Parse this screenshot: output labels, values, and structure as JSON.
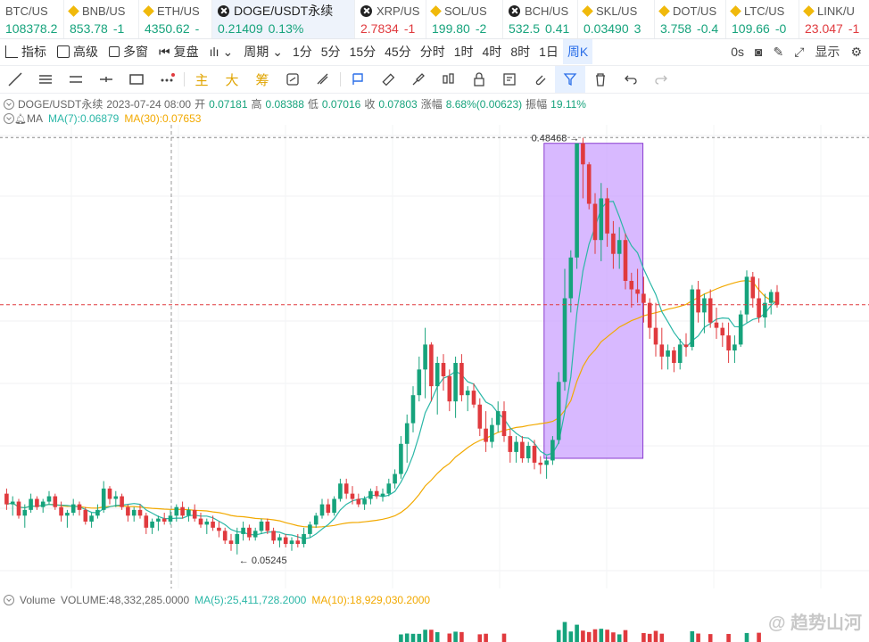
{
  "tickers": [
    {
      "symbol": "BTC/US",
      "price": "108378.2",
      "change": "",
      "dir": "up",
      "icon": "none"
    },
    {
      "symbol": "BNB/US",
      "price": "853.78",
      "change": "-1",
      "dir": "up",
      "icon": "coin-icon"
    },
    {
      "symbol": "ETH/US",
      "price": "4350.62",
      "change": "-",
      "dir": "up",
      "icon": "coin-icon"
    },
    {
      "symbol": "DOGE/USDT永续",
      "price": "0.21409",
      "change": "0.13%",
      "dir": "up",
      "icon": "x-icon",
      "active": true
    },
    {
      "symbol": "XRP/US",
      "price": "2.7834",
      "change": "-1",
      "dir": "dn",
      "icon": "x-icon"
    },
    {
      "symbol": "SOL/US",
      "price": "199.80",
      "change": "-2",
      "dir": "up",
      "icon": "coin-icon"
    },
    {
      "symbol": "BCH/US",
      "price": "532.5",
      "change": "0.41",
      "dir": "up",
      "icon": "x-icon"
    },
    {
      "symbol": "SKL/US",
      "price": "0.03490",
      "change": "3",
      "dir": "up",
      "icon": "coin-icon"
    },
    {
      "symbol": "DOT/US",
      "price": "3.758",
      "change": "-0.4",
      "dir": "up",
      "icon": "coin-icon"
    },
    {
      "symbol": "LTC/US",
      "price": "109.66",
      "change": "-0",
      "dir": "up",
      "icon": "coin-icon"
    },
    {
      "symbol": "LINK/U",
      "price": "23.047",
      "change": "-1",
      "dir": "dn",
      "icon": "coin-icon"
    }
  ],
  "toolbar1": {
    "indicators": "指标",
    "advanced": "高级",
    "multi_window": "多窗",
    "replay": "复盘",
    "period": "周期",
    "intervals": [
      "1分",
      "5分",
      "15分",
      "45分",
      "分时",
      "1时",
      "4时",
      "8时",
      "1日",
      "周K"
    ],
    "selected_interval": "周K",
    "right_zero": "0s",
    "display": "显示"
  },
  "toolbar2": {
    "zhu": "主",
    "da": "大",
    "chou": "筹"
  },
  "info": {
    "pair": "DOGE/USDT永续",
    "datetime": "2023-07-24 08:00",
    "open_label": "开",
    "open": "0.07181",
    "high_label": "高",
    "high": "0.08388",
    "low_label": "低",
    "low": "0.07016",
    "close_label": "收",
    "close": "0.07803",
    "change_label": "涨幅",
    "change": "8.68%(0.00623)",
    "amp_label": "振幅",
    "amp": "19.11%"
  },
  "ma": {
    "label": "MA",
    "ma7": "MA(7):0.06879",
    "ma30": "MA(30):0.07653"
  },
  "annotations": {
    "high_label": "0.48468",
    "low_label": "0.05245"
  },
  "volume": {
    "label": "Volume",
    "value": "VOLUME:48,332,285.0000",
    "ma5": "MA(5):25,411,728.2000",
    "ma10": "MA(10):18,929,030.2000"
  },
  "watermark": "@ 趋势山河",
  "colors": {
    "up": "#16a37c",
    "down": "#e03a3e",
    "ma7": "#2bb7a7",
    "ma30": "#f2a900",
    "box": "#c89bff"
  },
  "chart_data": {
    "type": "candlestick",
    "ohlc": [
      [
        0.072,
        0.074,
        0.066,
        0.068
      ],
      [
        0.068,
        0.071,
        0.064,
        0.069
      ],
      [
        0.069,
        0.07,
        0.063,
        0.064
      ],
      [
        0.064,
        0.068,
        0.06,
        0.066
      ],
      [
        0.066,
        0.072,
        0.065,
        0.07
      ],
      [
        0.07,
        0.071,
        0.066,
        0.067
      ],
      [
        0.067,
        0.07,
        0.065,
        0.069
      ],
      [
        0.069,
        0.073,
        0.068,
        0.071
      ],
      [
        0.071,
        0.072,
        0.066,
        0.067
      ],
      [
        0.067,
        0.069,
        0.062,
        0.064
      ],
      [
        0.064,
        0.066,
        0.06,
        0.065
      ],
      [
        0.065,
        0.07,
        0.064,
        0.068
      ],
      [
        0.068,
        0.069,
        0.064,
        0.066
      ],
      [
        0.066,
        0.067,
        0.061,
        0.062
      ],
      [
        0.062,
        0.065,
        0.06,
        0.064
      ],
      [
        0.064,
        0.068,
        0.063,
        0.066
      ],
      [
        0.066,
        0.077,
        0.065,
        0.074
      ],
      [
        0.074,
        0.075,
        0.068,
        0.07
      ],
      [
        0.07,
        0.073,
        0.067,
        0.071
      ],
      [
        0.071,
        0.072,
        0.066,
        0.067
      ],
      [
        0.067,
        0.068,
        0.062,
        0.064
      ],
      [
        0.064,
        0.067,
        0.062,
        0.066
      ],
      [
        0.066,
        0.068,
        0.063,
        0.064
      ],
      [
        0.064,
        0.065,
        0.058,
        0.06
      ],
      [
        0.06,
        0.063,
        0.058,
        0.062
      ],
      [
        0.062,
        0.064,
        0.059,
        0.063
      ],
      [
        0.063,
        0.065,
        0.061,
        0.062
      ],
      [
        0.062,
        0.066,
        0.061,
        0.064
      ],
      [
        0.064,
        0.068,
        0.062,
        0.067
      ],
      [
        0.067,
        0.069,
        0.063,
        0.064
      ],
      [
        0.064,
        0.067,
        0.062,
        0.066
      ],
      [
        0.066,
        0.068,
        0.062,
        0.063
      ],
      [
        0.063,
        0.065,
        0.06,
        0.061
      ],
      [
        0.061,
        0.063,
        0.058,
        0.062
      ],
      [
        0.062,
        0.064,
        0.059,
        0.06
      ],
      [
        0.06,
        0.062,
        0.057,
        0.059
      ],
      [
        0.059,
        0.06,
        0.055,
        0.056
      ],
      [
        0.056,
        0.058,
        0.053,
        0.055
      ],
      [
        0.055,
        0.06,
        0.052,
        0.058
      ],
      [
        0.058,
        0.062,
        0.056,
        0.06
      ],
      [
        0.06,
        0.061,
        0.056,
        0.057
      ],
      [
        0.057,
        0.06,
        0.056,
        0.059
      ],
      [
        0.059,
        0.063,
        0.058,
        0.062
      ],
      [
        0.062,
        0.063,
        0.058,
        0.059
      ],
      [
        0.059,
        0.06,
        0.055,
        0.056
      ],
      [
        0.056,
        0.058,
        0.054,
        0.057
      ],
      [
        0.057,
        0.058,
        0.054,
        0.055
      ],
      [
        0.055,
        0.057,
        0.053,
        0.056
      ],
      [
        0.056,
        0.058,
        0.054,
        0.055
      ],
      [
        0.055,
        0.06,
        0.054,
        0.058
      ],
      [
        0.058,
        0.062,
        0.057,
        0.061
      ],
      [
        0.061,
        0.065,
        0.06,
        0.064
      ],
      [
        0.064,
        0.07,
        0.063,
        0.068
      ],
      [
        0.068,
        0.07,
        0.064,
        0.065
      ],
      [
        0.065,
        0.071,
        0.064,
        0.07
      ],
      [
        0.07,
        0.078,
        0.069,
        0.076
      ],
      [
        0.076,
        0.078,
        0.07,
        0.072
      ],
      [
        0.072,
        0.075,
        0.068,
        0.07
      ],
      [
        0.07,
        0.072,
        0.067,
        0.068
      ],
      [
        0.068,
        0.071,
        0.066,
        0.07
      ],
      [
        0.07,
        0.074,
        0.068,
        0.073
      ],
      [
        0.073,
        0.075,
        0.07,
        0.071
      ],
      [
        0.071,
        0.074,
        0.069,
        0.072
      ],
      [
        0.072,
        0.078,
        0.071,
        0.076
      ],
      [
        0.076,
        0.082,
        0.074,
        0.08
      ],
      [
        0.08,
        0.098,
        0.078,
        0.094
      ],
      [
        0.094,
        0.11,
        0.085,
        0.105
      ],
      [
        0.105,
        0.128,
        0.1,
        0.122
      ],
      [
        0.122,
        0.15,
        0.118,
        0.14
      ],
      [
        0.14,
        0.175,
        0.12,
        0.16
      ],
      [
        0.16,
        0.162,
        0.118,
        0.128
      ],
      [
        0.128,
        0.15,
        0.11,
        0.145
      ],
      [
        0.145,
        0.152,
        0.125,
        0.135
      ],
      [
        0.135,
        0.14,
        0.112,
        0.118
      ],
      [
        0.118,
        0.15,
        0.108,
        0.145
      ],
      [
        0.145,
        0.152,
        0.118,
        0.122
      ],
      [
        0.122,
        0.128,
        0.112,
        0.125
      ],
      [
        0.125,
        0.13,
        0.114,
        0.116
      ],
      [
        0.116,
        0.12,
        0.098,
        0.102
      ],
      [
        0.102,
        0.112,
        0.09,
        0.095
      ],
      [
        0.095,
        0.108,
        0.092,
        0.104
      ],
      [
        0.104,
        0.118,
        0.1,
        0.112
      ],
      [
        0.112,
        0.118,
        0.095,
        0.098
      ],
      [
        0.098,
        0.102,
        0.085,
        0.09
      ],
      [
        0.09,
        0.098,
        0.085,
        0.095
      ],
      [
        0.095,
        0.098,
        0.085,
        0.087
      ],
      [
        0.087,
        0.095,
        0.085,
        0.093
      ],
      [
        0.093,
        0.096,
        0.082,
        0.085
      ],
      [
        0.085,
        0.088,
        0.08,
        0.084
      ],
      [
        0.084,
        0.088,
        0.078,
        0.086
      ],
      [
        0.086,
        0.098,
        0.084,
        0.096
      ],
      [
        0.096,
        0.138,
        0.094,
        0.131
      ],
      [
        0.131,
        0.24,
        0.125,
        0.205
      ],
      [
        0.205,
        0.265,
        0.19,
        0.255
      ],
      [
        0.255,
        0.468,
        0.24,
        0.47
      ],
      [
        0.47,
        0.484,
        0.35,
        0.42
      ],
      [
        0.42,
        0.425,
        0.33,
        0.34
      ],
      [
        0.34,
        0.36,
        0.26,
        0.28
      ],
      [
        0.28,
        0.38,
        0.25,
        0.35
      ],
      [
        0.35,
        0.37,
        0.27,
        0.29
      ],
      [
        0.29,
        0.31,
        0.24,
        0.26
      ],
      [
        0.26,
        0.3,
        0.24,
        0.28
      ],
      [
        0.28,
        0.29,
        0.215,
        0.225
      ],
      [
        0.225,
        0.235,
        0.195,
        0.215
      ],
      [
        0.215,
        0.24,
        0.2,
        0.21
      ],
      [
        0.21,
        0.23,
        0.18,
        0.2
      ],
      [
        0.2,
        0.205,
        0.165,
        0.175
      ],
      [
        0.175,
        0.2,
        0.15,
        0.16
      ],
      [
        0.16,
        0.175,
        0.14,
        0.15
      ],
      [
        0.15,
        0.16,
        0.14,
        0.155
      ],
      [
        0.155,
        0.158,
        0.138,
        0.145
      ],
      [
        0.145,
        0.165,
        0.14,
        0.16
      ],
      [
        0.16,
        0.17,
        0.15,
        0.158
      ],
      [
        0.158,
        0.22,
        0.155,
        0.215
      ],
      [
        0.215,
        0.225,
        0.18,
        0.19
      ],
      [
        0.19,
        0.21,
        0.17,
        0.205
      ],
      [
        0.205,
        0.215,
        0.175,
        0.18
      ],
      [
        0.18,
        0.195,
        0.165,
        0.175
      ],
      [
        0.175,
        0.18,
        0.158,
        0.168
      ],
      [
        0.168,
        0.18,
        0.145,
        0.155
      ],
      [
        0.155,
        0.168,
        0.145,
        0.16
      ],
      [
        0.16,
        0.192,
        0.158,
        0.188
      ],
      [
        0.188,
        0.238,
        0.18,
        0.23
      ],
      [
        0.23,
        0.236,
        0.195,
        0.205
      ],
      [
        0.205,
        0.228,
        0.18,
        0.185
      ],
      [
        0.185,
        0.21,
        0.175,
        0.2
      ],
      [
        0.2,
        0.215,
        0.188,
        0.212
      ],
      [
        0.212,
        0.22,
        0.195,
        0.198
      ]
    ],
    "ma7_last": 0.06879,
    "ma30_last": 0.07653,
    "high_marker": 0.48468,
    "low_marker": 0.05245
  }
}
